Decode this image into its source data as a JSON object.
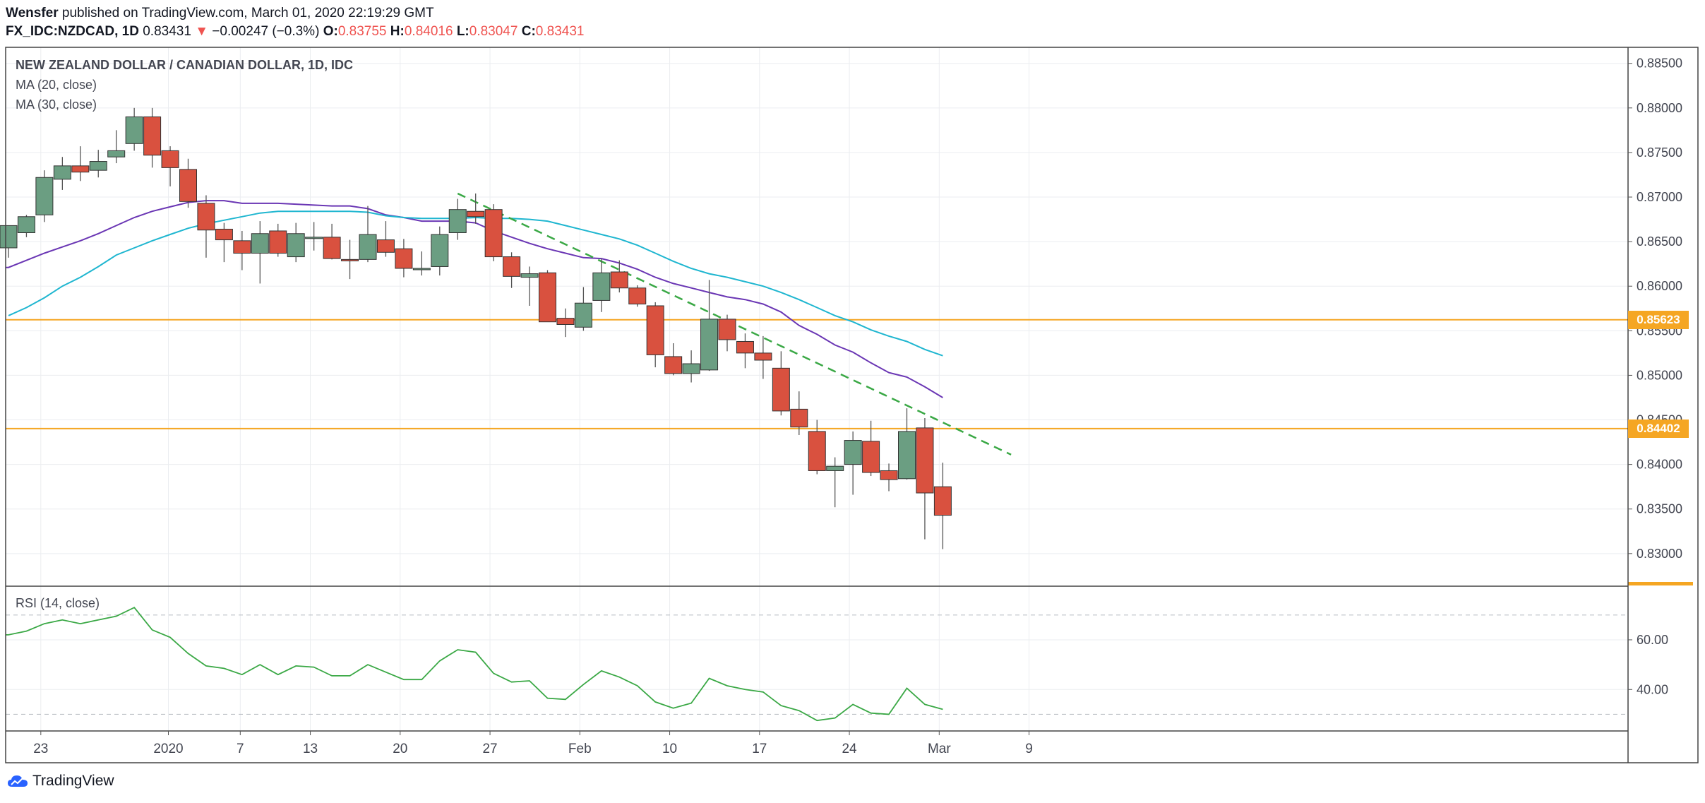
{
  "header": {
    "author": "Wensfer",
    "published": "published on TradingView.com, March 01, 2020 22:19:29 GMT",
    "symbol": "FX_IDC:NZDCAD, 1D",
    "last": "0.83431",
    "change_arrow": "▼",
    "change": "−0.00247 (−0.3%)",
    "o_label": "O:",
    "o": "0.83755",
    "h_label": "H:",
    "h": "0.84016",
    "l_label": "L:",
    "l": "0.83047",
    "c_label": "C:",
    "c": "0.83431"
  },
  "legend": {
    "title": "NEW ZEALAND DOLLAR / CANADIAN DOLLAR, 1D, IDC",
    "ma20": "MA (20, close)",
    "ma30": "MA (30, close)",
    "rsi": "RSI (14, close)"
  },
  "price_tags": {
    "upper": "0.85623",
    "lower": "0.84402"
  },
  "footer": {
    "brand": "TradingView"
  },
  "colors": {
    "up": "#6b9e82",
    "down": "#d9513f",
    "ma20": "#6a36b4",
    "ma30": "#1fb6d0",
    "hline": "#f5a623",
    "trend": "#3aa845",
    "rsi": "#3aa845",
    "grid": "#ebedf0"
  },
  "chart_data": {
    "type": "candlestick",
    "x_tick_labels": [
      "23",
      "2020",
      "7",
      "13",
      "20",
      "27",
      "Feb",
      "10",
      "17",
      "24",
      "Mar",
      "9"
    ],
    "y_tick_labels": [
      "0.83000",
      "0.83500",
      "0.84000",
      "0.84500",
      "0.85000",
      "0.85500",
      "0.86000",
      "0.86500",
      "0.87000",
      "0.87500",
      "0.88000",
      "0.88500"
    ],
    "ylim": [
      0.8265,
      0.8868
    ],
    "candles": [
      {
        "o": 0.8643,
        "h": 0.8668,
        "l": 0.8632,
        "c": 0.8668
      },
      {
        "o": 0.866,
        "h": 0.868,
        "l": 0.8655,
        "c": 0.8678
      },
      {
        "o": 0.868,
        "h": 0.873,
        "l": 0.8672,
        "c": 0.8722
      },
      {
        "o": 0.872,
        "h": 0.8745,
        "l": 0.8708,
        "c": 0.8735
      },
      {
        "o": 0.8735,
        "h": 0.8757,
        "l": 0.8718,
        "c": 0.8728
      },
      {
        "o": 0.873,
        "h": 0.8753,
        "l": 0.8722,
        "c": 0.874
      },
      {
        "o": 0.8745,
        "h": 0.8775,
        "l": 0.8738,
        "c": 0.8752
      },
      {
        "o": 0.876,
        "h": 0.88,
        "l": 0.8752,
        "c": 0.879
      },
      {
        "o": 0.879,
        "h": 0.88,
        "l": 0.8733,
        "c": 0.8747
      },
      {
        "o": 0.8752,
        "h": 0.8757,
        "l": 0.8712,
        "c": 0.8733
      },
      {
        "o": 0.8731,
        "h": 0.8743,
        "l": 0.8688,
        "c": 0.8695
      },
      {
        "o": 0.8693,
        "h": 0.8702,
        "l": 0.8632,
        "c": 0.8663
      },
      {
        "o": 0.8664,
        "h": 0.8671,
        "l": 0.8627,
        "c": 0.8652
      },
      {
        "o": 0.8651,
        "h": 0.8662,
        "l": 0.8618,
        "c": 0.8637
      },
      {
        "o": 0.8637,
        "h": 0.8673,
        "l": 0.8603,
        "c": 0.8659
      },
      {
        "o": 0.8662,
        "h": 0.867,
        "l": 0.8633,
        "c": 0.8637
      },
      {
        "o": 0.8633,
        "h": 0.8671,
        "l": 0.8627,
        "c": 0.8659
      },
      {
        "o": 0.8655,
        "h": 0.8672,
        "l": 0.864,
        "c": 0.8655
      },
      {
        "o": 0.8655,
        "h": 0.867,
        "l": 0.863,
        "c": 0.8631
      },
      {
        "o": 0.863,
        "h": 0.8652,
        "l": 0.8608,
        "c": 0.8629
      },
      {
        "o": 0.863,
        "h": 0.869,
        "l": 0.8627,
        "c": 0.8658
      },
      {
        "o": 0.8652,
        "h": 0.8673,
        "l": 0.8633,
        "c": 0.8638
      },
      {
        "o": 0.8642,
        "h": 0.8653,
        "l": 0.861,
        "c": 0.862
      },
      {
        "o": 0.862,
        "h": 0.8639,
        "l": 0.8612,
        "c": 0.862
      },
      {
        "o": 0.8622,
        "h": 0.8667,
        "l": 0.8612,
        "c": 0.8658
      },
      {
        "o": 0.866,
        "h": 0.8698,
        "l": 0.8652,
        "c": 0.8686
      },
      {
        "o": 0.8684,
        "h": 0.8704,
        "l": 0.867,
        "c": 0.8678
      },
      {
        "o": 0.8686,
        "h": 0.8692,
        "l": 0.8628,
        "c": 0.8633
      },
      {
        "o": 0.8633,
        "h": 0.8638,
        "l": 0.8598,
        "c": 0.8611
      },
      {
        "o": 0.861,
        "h": 0.8622,
        "l": 0.8578,
        "c": 0.8614
      },
      {
        "o": 0.8615,
        "h": 0.8618,
        "l": 0.856,
        "c": 0.856
      },
      {
        "o": 0.8564,
        "h": 0.8575,
        "l": 0.8543,
        "c": 0.8557
      },
      {
        "o": 0.8554,
        "h": 0.8599,
        "l": 0.855,
        "c": 0.8581
      },
      {
        "o": 0.8584,
        "h": 0.8631,
        "l": 0.8571,
        "c": 0.8615
      },
      {
        "o": 0.8616,
        "h": 0.8629,
        "l": 0.8593,
        "c": 0.8598
      },
      {
        "o": 0.8598,
        "h": 0.8601,
        "l": 0.8577,
        "c": 0.858
      },
      {
        "o": 0.8578,
        "h": 0.8582,
        "l": 0.8509,
        "c": 0.8523
      },
      {
        "o": 0.8521,
        "h": 0.8536,
        "l": 0.85,
        "c": 0.8502
      },
      {
        "o": 0.8502,
        "h": 0.8528,
        "l": 0.8492,
        "c": 0.8513
      },
      {
        "o": 0.8506,
        "h": 0.8607,
        "l": 0.8505,
        "c": 0.8563
      },
      {
        "o": 0.8563,
        "h": 0.8568,
        "l": 0.8527,
        "c": 0.854
      },
      {
        "o": 0.8538,
        "h": 0.8547,
        "l": 0.8508,
        "c": 0.8525
      },
      {
        "o": 0.8525,
        "h": 0.8544,
        "l": 0.8496,
        "c": 0.8517
      },
      {
        "o": 0.8508,
        "h": 0.8527,
        "l": 0.8455,
        "c": 0.846
      },
      {
        "o": 0.8462,
        "h": 0.8482,
        "l": 0.8433,
        "c": 0.8442
      },
      {
        "o": 0.8437,
        "h": 0.845,
        "l": 0.8389,
        "c": 0.8393
      },
      {
        "o": 0.8393,
        "h": 0.8408,
        "l": 0.8352,
        "c": 0.8398
      },
      {
        "o": 0.84,
        "h": 0.8437,
        "l": 0.8366,
        "c": 0.8427
      },
      {
        "o": 0.8426,
        "h": 0.8449,
        "l": 0.8387,
        "c": 0.8391
      },
      {
        "o": 0.8393,
        "h": 0.8401,
        "l": 0.837,
        "c": 0.8383
      },
      {
        "o": 0.8384,
        "h": 0.8463,
        "l": 0.8383,
        "c": 0.8437
      },
      {
        "o": 0.8441,
        "h": 0.8452,
        "l": 0.8316,
        "c": 0.8368
      },
      {
        "o": 0.8375,
        "h": 0.8402,
        "l": 0.8305,
        "c": 0.8343
      }
    ],
    "ma20": [
      0.8621,
      0.8629,
      0.8637,
      0.8644,
      0.8651,
      0.8659,
      0.8668,
      0.8677,
      0.8684,
      0.8689,
      0.8694,
      0.8696,
      0.8696,
      0.8693,
      0.8693,
      0.8693,
      0.8692,
      0.8691,
      0.869,
      0.869,
      0.8687,
      0.868,
      0.8677,
      0.8673,
      0.8673,
      0.8673,
      0.8671,
      0.8662,
      0.8655,
      0.8648,
      0.8642,
      0.8637,
      0.8632,
      0.8631,
      0.8626,
      0.8619,
      0.861,
      0.8603,
      0.8598,
      0.8593,
      0.8588,
      0.8585,
      0.858,
      0.8571,
      0.8556,
      0.8546,
      0.8534,
      0.8526,
      0.8514,
      0.8503,
      0.8498,
      0.8487,
      0.8475
    ],
    "ma30": [
      0.8567,
      0.8576,
      0.8587,
      0.86,
      0.861,
      0.8622,
      0.8635,
      0.8643,
      0.8651,
      0.8658,
      0.8665,
      0.867,
      0.8674,
      0.8678,
      0.8682,
      0.8684,
      0.8684,
      0.8684,
      0.8684,
      0.8684,
      0.8683,
      0.8679,
      0.8677,
      0.8676,
      0.8676,
      0.8676,
      0.8677,
      0.8676,
      0.8676,
      0.8675,
      0.8673,
      0.8668,
      0.8663,
      0.8658,
      0.8653,
      0.8646,
      0.8637,
      0.8628,
      0.862,
      0.8614,
      0.861,
      0.8605,
      0.86,
      0.8593,
      0.8585,
      0.8576,
      0.8567,
      0.856,
      0.8551,
      0.8544,
      0.8538,
      0.8529,
      0.8522
    ],
    "trend_line": {
      "from_candle": 25,
      "from_value": 0.8704,
      "to_candle": 55.8,
      "to_value": 0.8411
    },
    "horizontal_levels": [
      0.85623,
      0.84402
    ],
    "rsi": {
      "ylim": [
        23.3,
        81.6
      ],
      "y_tick_labels": [
        "40.00",
        "60.00"
      ],
      "ref_levels": [
        70,
        30
      ],
      "values": [
        62,
        63.5,
        66.5,
        68,
        66.5,
        68,
        69.5,
        73,
        64,
        61,
        54.5,
        49.5,
        48.5,
        46,
        50,
        46,
        49.5,
        49,
        45.5,
        45.5,
        50,
        47,
        44,
        44,
        51.5,
        56,
        55,
        46.5,
        43,
        43.5,
        36.5,
        36,
        42,
        47.5,
        45,
        41.5,
        35,
        32.5,
        34.5,
        44.5,
        41.5,
        40,
        39,
        33.5,
        31.5,
        27.5,
        28.5,
        34,
        30.5,
        30,
        40.5,
        34,
        32
      ]
    }
  }
}
